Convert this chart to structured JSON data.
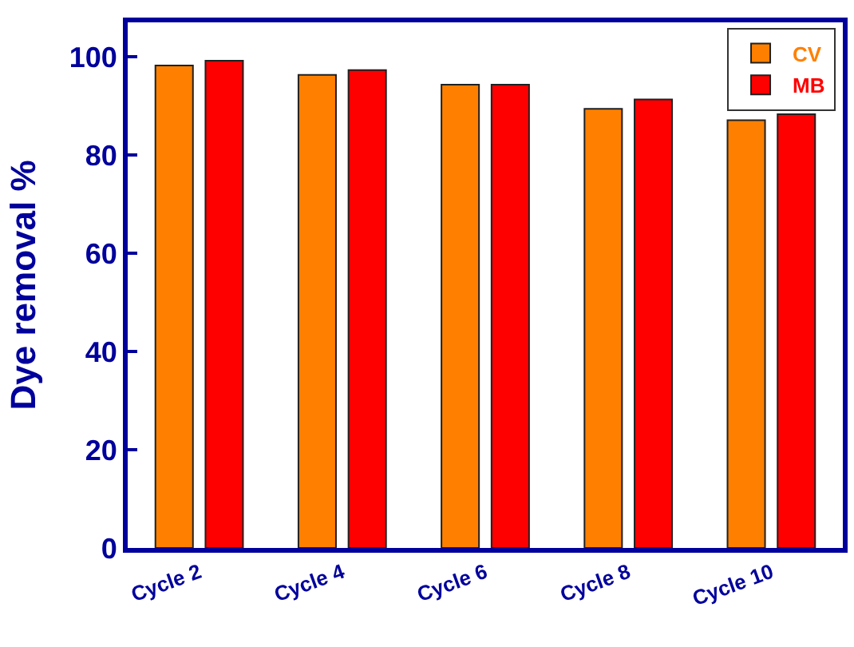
{
  "chart_data": {
    "type": "bar",
    "ylabel": "Dye removal %",
    "categories": [
      "Cycle 2",
      "Cycle 4",
      "Cycle 6",
      "Cycle 8",
      "Cycle 10"
    ],
    "series": [
      {
        "name": "CV",
        "color": "#ff8000",
        "values": [
          98.2,
          96.3,
          94.3,
          89.4,
          87.1
        ]
      },
      {
        "name": "MB",
        "color": "#ff0000",
        "values": [
          99.2,
          97.3,
          94.3,
          91.3,
          88.3
        ]
      }
    ],
    "ylim": [
      0,
      107
    ],
    "yticks": [
      0,
      20,
      40,
      60,
      80,
      100
    ],
    "legend": "top right"
  }
}
